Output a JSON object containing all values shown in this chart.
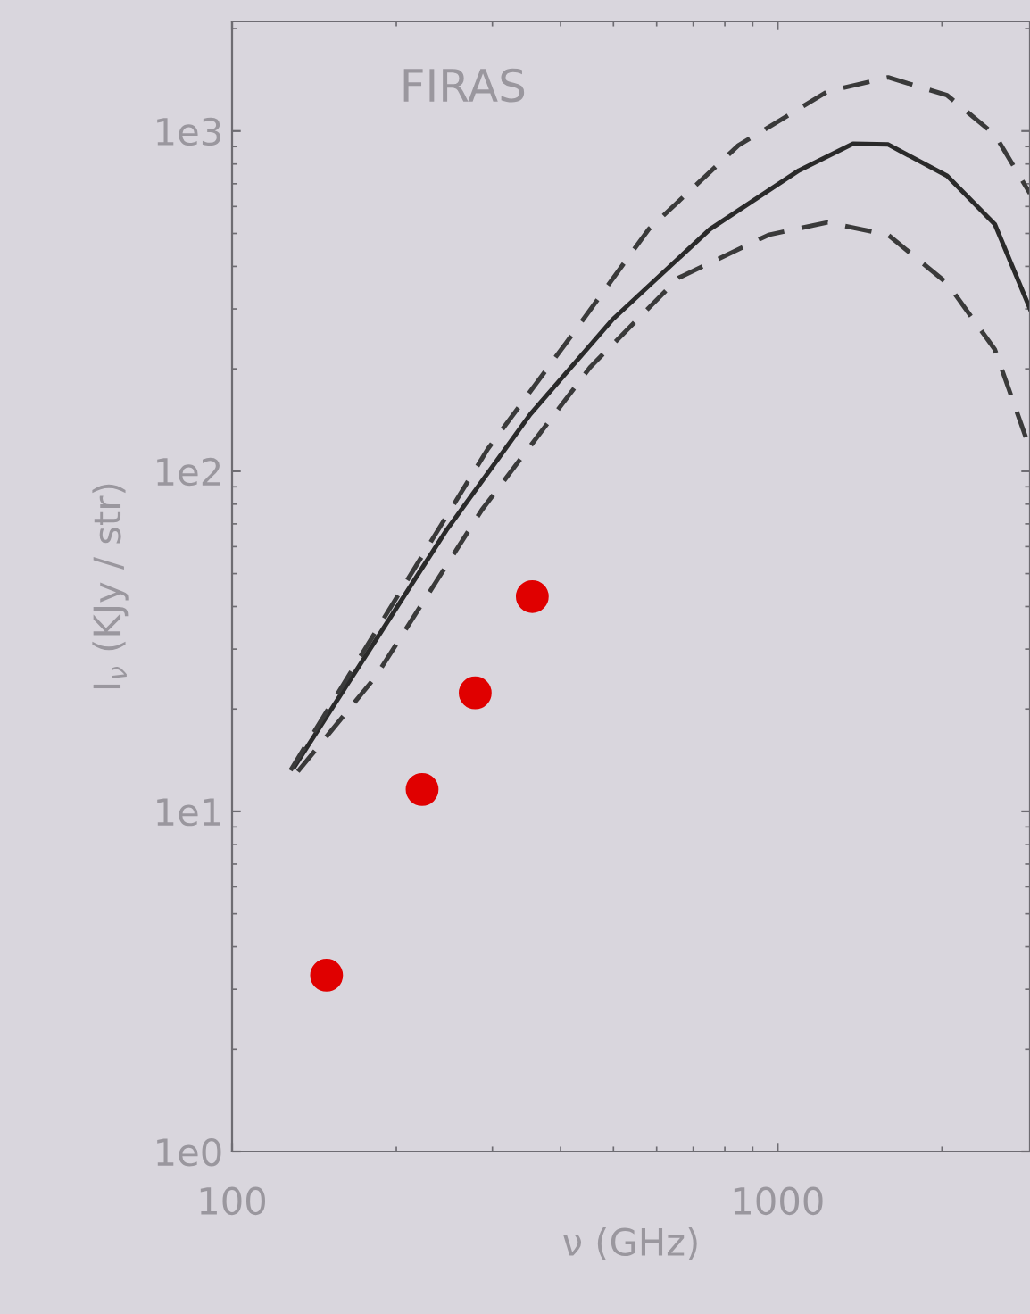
{
  "chart_data": {
    "type": "line",
    "xlabel": "ν (GHz)",
    "ylabel": "I$_{ν}$ (KJy / str)",
    "annotations": [
      "FIRAS"
    ],
    "log": "xy",
    "grid": false,
    "xlim": [
      100,
      2900
    ],
    "ylim": [
      1,
      2100
    ],
    "xticks": [
      100,
      1000
    ],
    "yticks": [
      {
        "value": 1,
        "label": "1e0"
      },
      {
        "value": 10,
        "label": "1e1"
      },
      {
        "value": 100,
        "label": "1e2"
      },
      {
        "value": 1000,
        "label": "1e3"
      }
    ],
    "series": [
      {
        "color": "#2a2a2a",
        "line_style": "solid",
        "marker": "none",
        "x": [
          130,
          169,
          247,
          352,
          499,
          751,
          1094,
          1374,
          1594,
          2044,
          2500,
          2900
        ],
        "values": [
          13.5,
          26,
          67,
          147,
          280,
          514,
          766,
          918,
          913,
          738,
          532,
          300
        ]
      },
      {
        "color": "#3a3a3a",
        "line_style": "dashed",
        "marker": "none",
        "x": [
          128,
          294,
          410,
          580,
          847,
          1233,
          1594,
          2044,
          2500,
          2900
        ],
        "values": [
          13.2,
          116,
          239,
          514,
          907,
          1306,
          1438,
          1274,
          975,
          655
        ]
      },
      {
        "color": "#3a3a3a",
        "line_style": "dashed",
        "marker": "none",
        "x": [
          132,
          183,
          287,
          453,
          658,
          962,
          1234,
          1594,
          2044,
          2500,
          2900
        ],
        "values": [
          13.1,
          24.8,
          77,
          202,
          370,
          495,
          539,
          495,
          357,
          228,
          116
        ]
      },
      {
        "type": "scatter",
        "color": "#e00000",
        "marker": "circle",
        "x": [
          149,
          223,
          279,
          355
        ],
        "values": [
          3.3,
          11.6,
          22.3,
          42.8
        ]
      }
    ]
  }
}
